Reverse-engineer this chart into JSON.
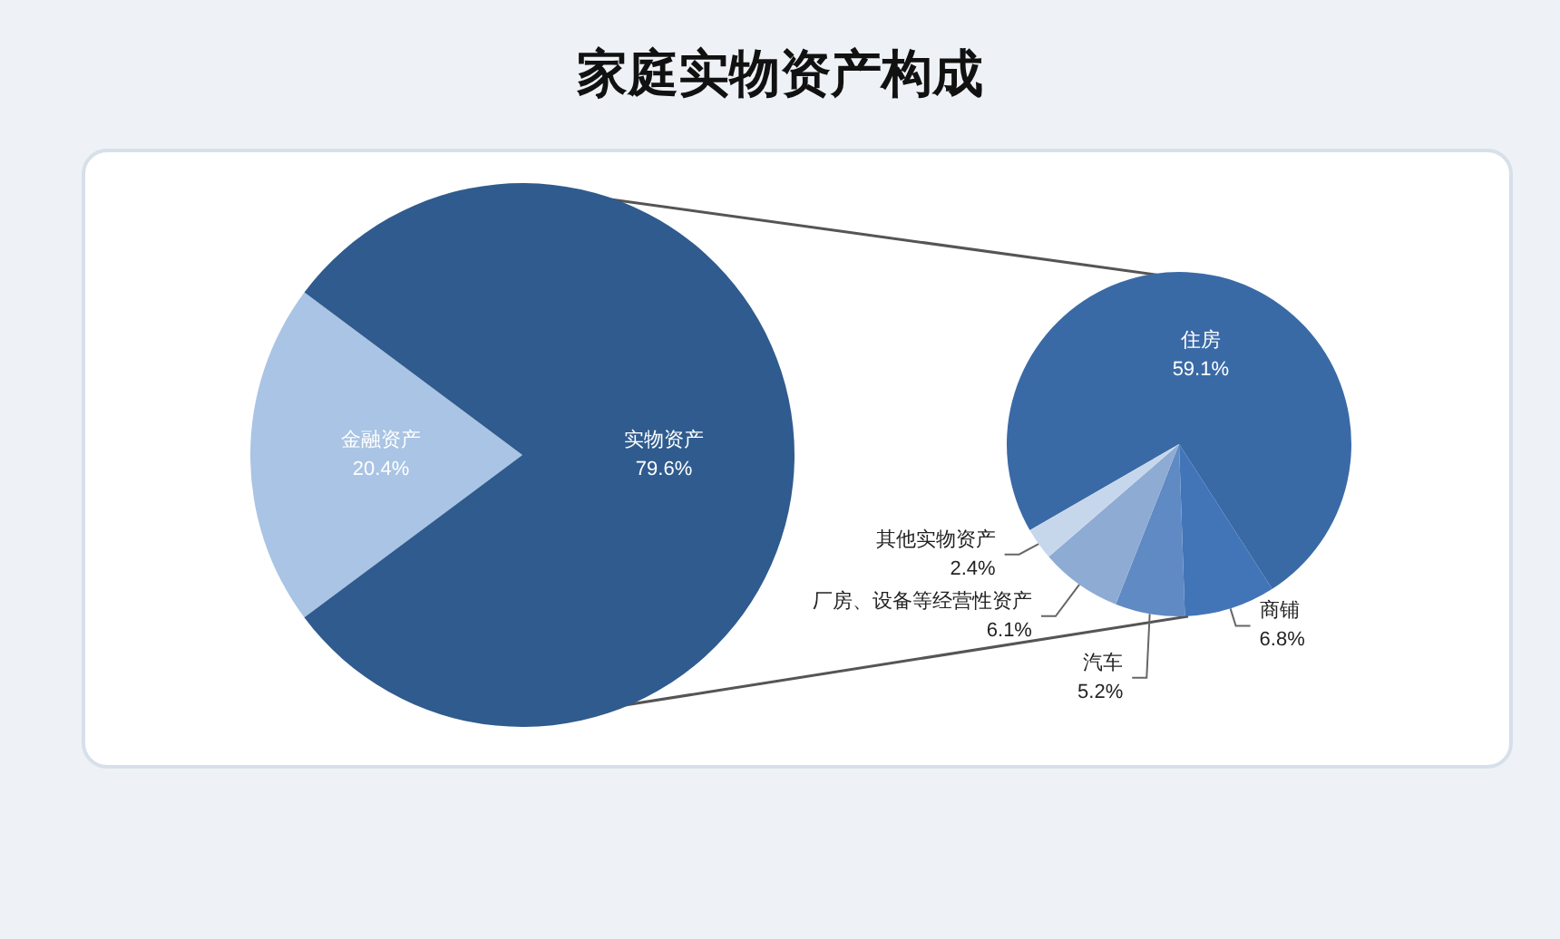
{
  "chart_data": [
    {
      "type": "pie",
      "title": "家庭实物资产构成",
      "categories": [
        "金融资产",
        "实物资产"
      ],
      "values": [
        20.4,
        79.6
      ],
      "colors": [
        "#a9c4e4",
        "#2f5b8e"
      ],
      "value_labels": [
        "20.4%",
        "79.6%"
      ]
    },
    {
      "type": "pie",
      "categories": [
        "住房",
        "商铺",
        "汽车",
        "厂房、设备等经营性资产",
        "其他实物资产"
      ],
      "values": [
        59.1,
        6.8,
        5.2,
        6.1,
        2.4
      ],
      "colors": [
        "#3a6aa6",
        "#4274b8",
        "#5f8ac4",
        "#8eabd3",
        "#c6d7ec"
      ],
      "value_labels": [
        "59.1%",
        "6.8%",
        "5.2%",
        "6.1%",
        "2.4%"
      ]
    }
  ]
}
